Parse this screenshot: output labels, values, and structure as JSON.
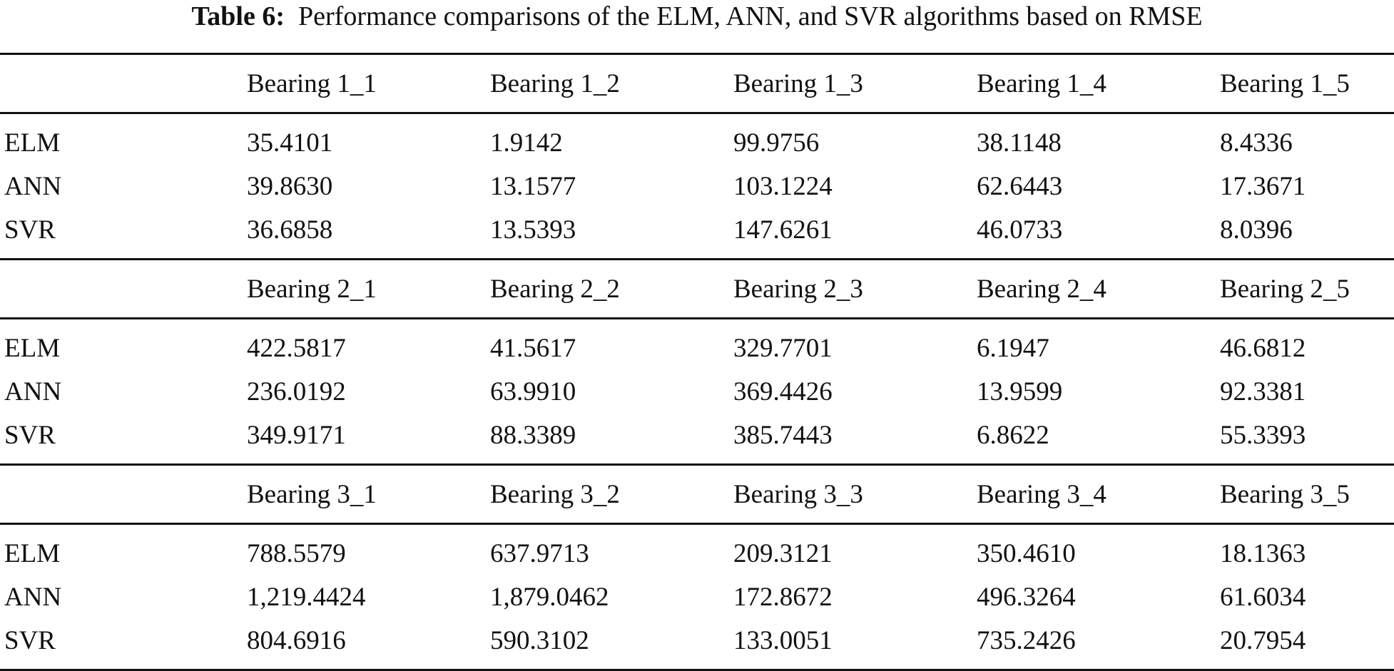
{
  "caption": {
    "label": "Table 6:",
    "text": "Performance comparisons of the ELM, ANN, and SVR algorithms based on RMSE"
  },
  "groups": [
    {
      "headers": [
        "Bearing 1_1",
        "Bearing 1_2",
        "Bearing 1_3",
        "Bearing 1_4",
        "Bearing 1_5"
      ],
      "rows": [
        {
          "model": "ELM",
          "values": [
            "35.4101",
            "1.9142",
            "99.9756",
            "38.1148",
            "8.4336"
          ]
        },
        {
          "model": "ANN",
          "values": [
            "39.8630",
            "13.1577",
            "103.1224",
            "62.6443",
            "17.3671"
          ]
        },
        {
          "model": "SVR",
          "values": [
            "36.6858",
            "13.5393",
            "147.6261",
            "46.0733",
            "8.0396"
          ]
        }
      ]
    },
    {
      "headers": [
        "Bearing 2_1",
        "Bearing 2_2",
        "Bearing 2_3",
        "Bearing 2_4",
        "Bearing 2_5"
      ],
      "rows": [
        {
          "model": "ELM",
          "values": [
            "422.5817",
            "41.5617",
            "329.7701",
            "6.1947",
            "46.6812"
          ]
        },
        {
          "model": "ANN",
          "values": [
            "236.0192",
            "63.9910",
            "369.4426",
            "13.9599",
            "92.3381"
          ]
        },
        {
          "model": "SVR",
          "values": [
            "349.9171",
            "88.3389",
            "385.7443",
            "6.8622",
            "55.3393"
          ]
        }
      ]
    },
    {
      "headers": [
        "Bearing 3_1",
        "Bearing 3_2",
        "Bearing 3_3",
        "Bearing 3_4",
        "Bearing 3_5"
      ],
      "rows": [
        {
          "model": "ELM",
          "values": [
            "788.5579",
            "637.9713",
            "209.3121",
            "350.4610",
            "18.1363"
          ]
        },
        {
          "model": "ANN",
          "values": [
            "1,219.4424",
            "1,879.0462",
            "172.8672",
            "496.3264",
            "61.6034"
          ]
        },
        {
          "model": "SVR",
          "values": [
            "804.6916",
            "590.3102",
            "133.0051",
            "735.2426",
            "20.7954"
          ]
        }
      ]
    }
  ]
}
